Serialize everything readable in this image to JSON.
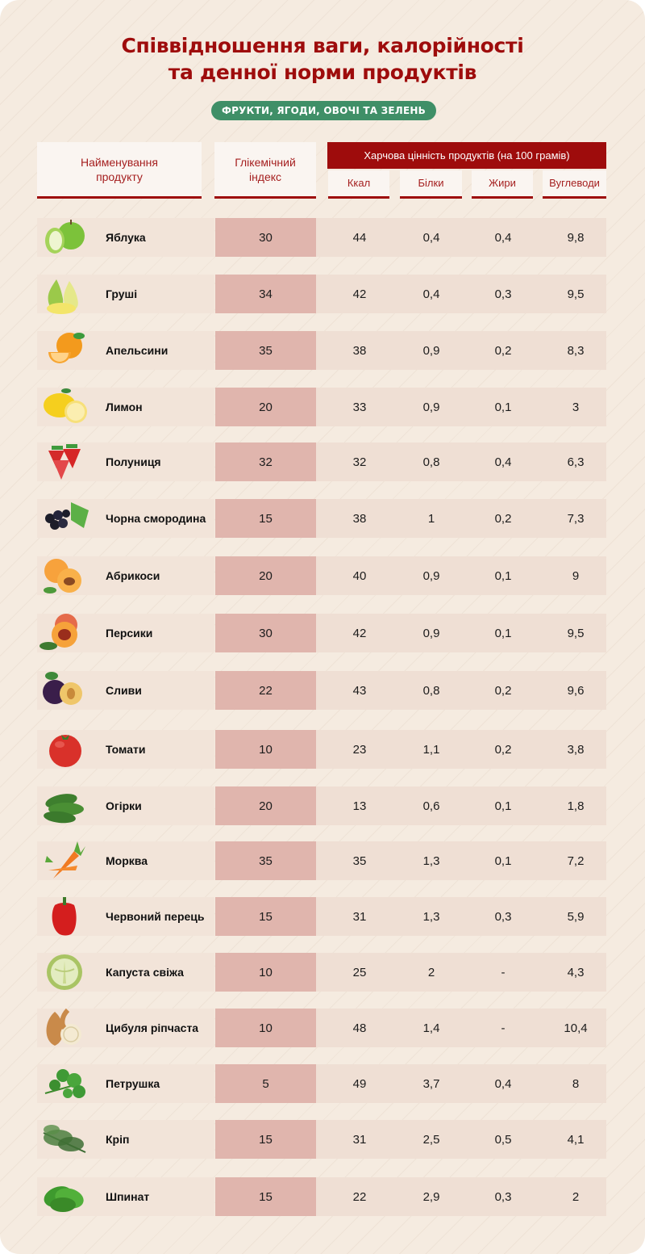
{
  "title": {
    "line1": "Співвідношення ваги, калорійності",
    "line2": "та денної норми продуктів"
  },
  "category_pill": "ФРУКТИ, ЯГОДИ, ОВОЧІ ТА ЗЕЛЕНЬ",
  "colors": {
    "title": "#9e0c0c",
    "pill": "#3f8f67",
    "header_band": "#9e0c0c",
    "gi_cell": "#e0b5ad",
    "values_cell": "#efdfd4",
    "background": "#f5ebe0"
  },
  "table": {
    "headers": {
      "name": "Найменування продукту",
      "gi": "Глікемічний індекс",
      "group": "Харчова цінність продуктів (на 100 грамів)",
      "kcal": "Ккал",
      "protein": "Білки",
      "fat": "Жири",
      "carbs": "Вуглеводи"
    },
    "rows": [
      {
        "name": "Яблука",
        "icon": "apple-icon",
        "gi": "30",
        "kcal": "44",
        "protein": "0,4",
        "fat": "0,4",
        "carbs": "9,8"
      },
      {
        "name": "Груші",
        "icon": "pear-icon",
        "gi": "34",
        "kcal": "42",
        "protein": "0,4",
        "fat": "0,3",
        "carbs": "9,5"
      },
      {
        "name": "Апельсини",
        "icon": "orange-icon",
        "gi": "35",
        "kcal": "38",
        "protein": "0,9",
        "fat": "0,2",
        "carbs": "8,3"
      },
      {
        "name": "Лимон",
        "icon": "lemon-icon",
        "gi": "20",
        "kcal": "33",
        "protein": "0,9",
        "fat": "0,1",
        "carbs": "3"
      },
      {
        "name": "Полуниця",
        "icon": "strawberry-icon",
        "gi": "32",
        "kcal": "32",
        "protein": "0,8",
        "fat": "0,4",
        "carbs": "6,3"
      },
      {
        "name": "Чорна смородина",
        "icon": "blackcurrant-icon",
        "gi": "15",
        "kcal": "38",
        "protein": "1",
        "fat": "0,2",
        "carbs": "7,3"
      },
      {
        "name": "Абрикоси",
        "icon": "apricot-icon",
        "gi": "20",
        "kcal": "40",
        "protein": "0,9",
        "fat": "0,1",
        "carbs": "9"
      },
      {
        "name": "Персики",
        "icon": "peach-icon",
        "gi": "30",
        "kcal": "42",
        "protein": "0,9",
        "fat": "0,1",
        "carbs": "9,5"
      },
      {
        "name": "Сливи",
        "icon": "plum-icon",
        "gi": "22",
        "kcal": "43",
        "protein": "0,8",
        "fat": "0,2",
        "carbs": "9,6"
      },
      {
        "name": "Томати",
        "icon": "tomato-icon",
        "gi": "10",
        "kcal": "23",
        "protein": "1,1",
        "fat": "0,2",
        "carbs": "3,8"
      },
      {
        "name": "Огірки",
        "icon": "cucumber-icon",
        "gi": "20",
        "kcal": "13",
        "protein": "0,6",
        "fat": "0,1",
        "carbs": "1,8"
      },
      {
        "name": "Морква",
        "icon": "carrot-icon",
        "gi": "35",
        "kcal": "35",
        "protein": "1,3",
        "fat": "0,1",
        "carbs": "7,2"
      },
      {
        "name": "Червоний перець",
        "icon": "red-pepper-icon",
        "gi": "15",
        "kcal": "31",
        "protein": "1,3",
        "fat": "0,3",
        "carbs": "5,9"
      },
      {
        "name": "Капуста свіжа",
        "icon": "cabbage-icon",
        "gi": "10",
        "kcal": "25",
        "protein": "2",
        "fat": "-",
        "carbs": "4,3"
      },
      {
        "name": "Цибуля ріпчаста",
        "icon": "onion-icon",
        "gi": "10",
        "kcal": "48",
        "protein": "1,4",
        "fat": "-",
        "carbs": "10,4"
      },
      {
        "name": "Петрушка",
        "icon": "parsley-icon",
        "gi": "5",
        "kcal": "49",
        "protein": "3,7",
        "fat": "0,4",
        "carbs": "8"
      },
      {
        "name": "Кріп",
        "icon": "dill-icon",
        "gi": "15",
        "kcal": "31",
        "protein": "2,5",
        "fat": "0,5",
        "carbs": "4,1"
      },
      {
        "name": "Шпинат",
        "icon": "spinach-icon",
        "gi": "15",
        "kcal": "22",
        "protein": "2,9",
        "fat": "0,3",
        "carbs": "2"
      }
    ]
  }
}
